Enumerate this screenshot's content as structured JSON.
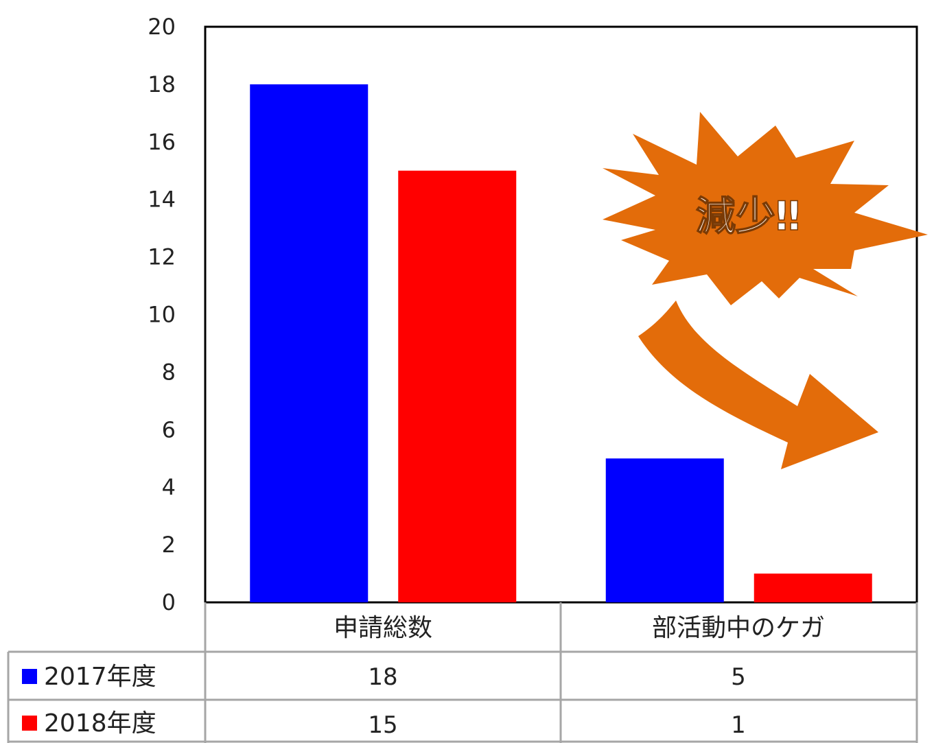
{
  "chart_data": {
    "type": "bar",
    "categories": [
      "申請総数",
      "部活動中のケガ"
    ],
    "series": [
      {
        "name": "2017年度",
        "values": [
          18,
          5
        ],
        "color": "#0000ff"
      },
      {
        "name": "2018年度",
        "values": [
          15,
          1
        ],
        "color": "#ff0000"
      }
    ],
    "y_ticks": [
      "0",
      "2",
      "4",
      "6",
      "8",
      "10",
      "12",
      "14",
      "16",
      "18",
      "20"
    ],
    "ylim": [
      0,
      20
    ],
    "grid": false,
    "legend_placement": "data-table-bottom-left",
    "data_table": {
      "rows": [
        {
          "label": "2017年度",
          "cells": [
            "18",
            "5"
          ]
        },
        {
          "label": "2018年度",
          "cells": [
            "15",
            "1"
          ]
        }
      ]
    },
    "annotation": {
      "text": "減少‼",
      "shape": "starburst-callout",
      "arrow": "down-right",
      "color": "#e36c0a"
    }
  }
}
